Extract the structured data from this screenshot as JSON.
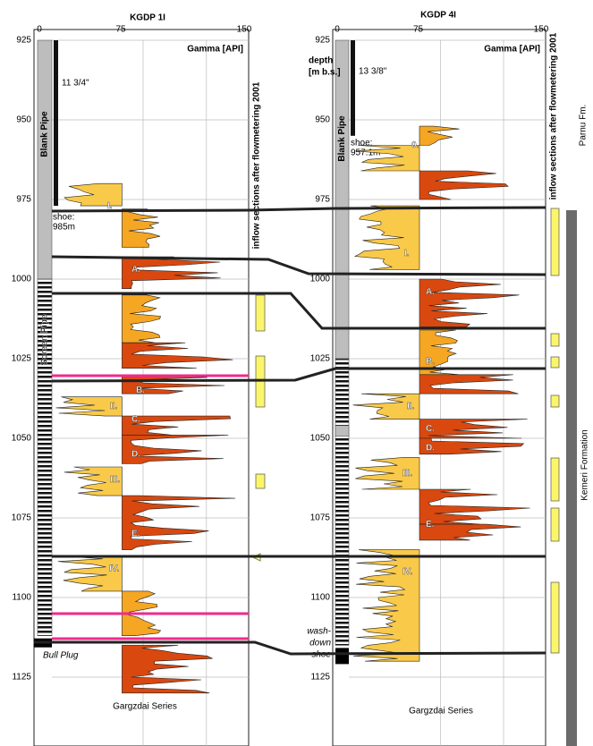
{
  "wells": [
    {
      "title": "KGDP 1I",
      "scale": [
        0,
        75,
        150
      ],
      "gamma_label": "Gamma [API]",
      "depths": [
        925,
        950,
        975,
        1000,
        1025,
        1050,
        1075,
        1100,
        1125
      ],
      "casing": "11 3/4\"",
      "shoe": [
        "shoe:",
        "985m"
      ],
      "blank_pipe": "Blank Pipe",
      "screen_pipe": "Screen Pipe",
      "bottom": [
        "Bull Plug"
      ],
      "units": [
        "I.",
        "A.",
        "B.",
        "II.",
        "C.",
        "D.",
        "III.",
        "E.",
        "IV."
      ],
      "inflow_label": "inflow sections after flowmetering 2001",
      "series": "Gargzdai Series"
    },
    {
      "title": "KGDP 4I",
      "scale": [
        0,
        75,
        150
      ],
      "gamma_label": "Gamma [API]",
      "depth_label": [
        "depth",
        "[m b.s.]"
      ],
      "depths": [
        925,
        950,
        975,
        1000,
        1025,
        1050,
        1075,
        1100,
        1125
      ],
      "casing": "13 3/8\"",
      "shoe": [
        "shoe:",
        "957.1m"
      ],
      "blank_pipe": "Blank Pipe",
      "bottom": [
        "wash-",
        "down",
        "shoe"
      ],
      "units": [
        "0.",
        "I.",
        "A.",
        "B.",
        "II.",
        "C.",
        "D.",
        "III.",
        "E.",
        "IV."
      ],
      "inflow_label": "inflow sections after flowmetering 2001",
      "series": "Gargzdai Series"
    }
  ],
  "formations": [
    "Parnu Fm.",
    "Kemeri Formation"
  ]
}
